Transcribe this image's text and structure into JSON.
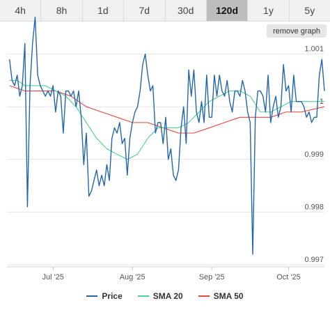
{
  "tabs": [
    {
      "label": "4h",
      "active": false
    },
    {
      "label": "8h",
      "active": false
    },
    {
      "label": "1d",
      "active": false
    },
    {
      "label": "7d",
      "active": false
    },
    {
      "label": "30d",
      "active": false
    },
    {
      "label": "120d",
      "active": true
    },
    {
      "label": "1y",
      "active": false
    },
    {
      "label": "5y",
      "active": false
    }
  ],
  "remove_graph_label": "remove graph",
  "chart_data": {
    "type": "line",
    "xlim": [
      "2025-06-13",
      "2025-10-15"
    ],
    "ylim": [
      0.99696,
      1.00118
    ],
    "y_ticks": [
      {
        "value": 1.001,
        "label": "1.001"
      },
      {
        "value": 1.0,
        "label": "1"
      },
      {
        "value": 0.999,
        "label": "0.999"
      },
      {
        "value": 0.998,
        "label": "0.998"
      },
      {
        "value": 0.997,
        "label": "0.997"
      }
    ],
    "x_ticks": [
      {
        "date": "2025-07-01",
        "label": "Jul '25"
      },
      {
        "date": "2025-08-01",
        "label": "Aug '25"
      },
      {
        "date": "2025-09-01",
        "label": "Sep '25"
      },
      {
        "date": "2025-10-01",
        "label": "Oct '25"
      }
    ],
    "grid": true,
    "legend_position": "bottom",
    "colors": {
      "price": "#2166ac",
      "sma20": "#4fd18b",
      "sma50": "#e8463a"
    },
    "series": [
      {
        "name": "Price",
        "color": "#2166ac",
        "points": [
          [
            "2025-06-14",
            1.0009
          ],
          [
            "2025-06-15",
            1.0005
          ],
          [
            "2025-06-16",
            1.0004
          ],
          [
            "2025-06-17",
            1.0006
          ],
          [
            "2025-06-18",
            1.0002
          ],
          [
            "2025-06-19",
            1.0004
          ],
          [
            "2025-06-20",
            1.0012
          ],
          [
            "2025-06-21",
            0.9981
          ],
          [
            "2025-06-22",
            1.0004
          ],
          [
            "2025-06-23",
            1.0012
          ],
          [
            "2025-06-24",
            1.0017
          ],
          [
            "2025-06-25",
            1.0006
          ],
          [
            "2025-06-26",
            1.0004
          ],
          [
            "2025-06-27",
            1.0003
          ],
          [
            "2025-06-28",
            1.0002
          ],
          [
            "2025-06-29",
            1.0003
          ],
          [
            "2025-06-30",
            1.0002
          ],
          [
            "2025-07-01",
            1.0004
          ],
          [
            "2025-07-02",
            0.9999
          ],
          [
            "2025-07-03",
            1.0003
          ],
          [
            "2025-07-04",
            1.0002
          ],
          [
            "2025-07-05",
            0.9995
          ],
          [
            "2025-07-06",
            1.0003
          ],
          [
            "2025-07-07",
            1.0003
          ],
          [
            "2025-07-08",
            1.0002
          ],
          [
            "2025-07-09",
            1.0003
          ],
          [
            "2025-07-10",
            1.0
          ],
          [
            "2025-07-11",
            1.0003
          ],
          [
            "2025-07-12",
            0.9998
          ],
          [
            "2025-07-13",
            0.9989
          ],
          [
            "2025-07-14",
            0.9995
          ],
          [
            "2025-07-15",
            0.9983
          ],
          [
            "2025-07-16",
            0.9984
          ],
          [
            "2025-07-17",
            0.9986
          ],
          [
            "2025-07-18",
            0.9988
          ],
          [
            "2025-07-19",
            0.9985
          ],
          [
            "2025-07-20",
            0.9987
          ],
          [
            "2025-07-21",
            0.9985
          ],
          [
            "2025-07-22",
            0.9989
          ],
          [
            "2025-07-23",
            0.9986
          ],
          [
            "2025-07-24",
            0.9994
          ],
          [
            "2025-07-25",
            0.9996
          ],
          [
            "2025-07-26",
            0.9995
          ],
          [
            "2025-07-27",
            0.9997
          ],
          [
            "2025-07-28",
            0.9993
          ],
          [
            "2025-07-29",
            0.9994
          ],
          [
            "2025-07-30",
            0.9987
          ],
          [
            "2025-07-31",
            0.9994
          ],
          [
            "2025-08-01",
            0.9997
          ],
          [
            "2025-08-02",
            0.9999
          ],
          [
            "2025-08-03",
            1.0
          ],
          [
            "2025-08-04",
            1.0003
          ],
          [
            "2025-08-05",
            1.0008
          ],
          [
            "2025-08-06",
            1.001
          ],
          [
            "2025-08-07",
            1.0006
          ],
          [
            "2025-08-08",
            1.0003
          ],
          [
            "2025-08-09",
            1.0004
          ],
          [
            "2025-08-10",
            0.9995
          ],
          [
            "2025-08-11",
            0.9997
          ],
          [
            "2025-08-12",
            0.9997
          ],
          [
            "2025-08-13",
            0.9993
          ],
          [
            "2025-08-14",
            0.9998
          ],
          [
            "2025-08-15",
            0.999
          ],
          [
            "2025-08-16",
            0.9992
          ],
          [
            "2025-08-17",
            0.9987
          ],
          [
            "2025-08-18",
            0.9986
          ],
          [
            "2025-08-19",
            0.9988
          ],
          [
            "2025-08-20",
            0.9996
          ],
          [
            "2025-08-21",
            1.0
          ],
          [
            "2025-08-22",
            0.9993
          ],
          [
            "2025-08-23",
            1.0007
          ],
          [
            "2025-08-24",
            1.0002
          ],
          [
            "2025-08-25",
            1.0007
          ],
          [
            "2025-08-26",
            0.9999
          ],
          [
            "2025-08-27",
            0.9997
          ],
          [
            "2025-08-28",
            1.0001
          ],
          [
            "2025-08-29",
            0.9997
          ],
          [
            "2025-08-30",
            1.0006
          ],
          [
            "2025-08-31",
            0.9998
          ],
          [
            "2025-09-01",
            0.9998
          ],
          [
            "2025-09-02",
            1.0006
          ],
          [
            "2025-09-03",
            1.0002
          ],
          [
            "2025-09-04",
            1.0006
          ],
          [
            "2025-09-05",
            1.0003
          ],
          [
            "2025-09-06",
            1.0002
          ],
          [
            "2025-09-07",
            1.0005
          ],
          [
            "2025-09-08",
            1.0001
          ],
          [
            "2025-09-09",
            0.9999
          ],
          [
            "2025-09-10",
            1.0003
          ],
          [
            "2025-09-11",
            1.0003
          ],
          [
            "2025-09-12",
            1.0002
          ],
          [
            "2025-09-13",
            1.0005
          ],
          [
            "2025-09-14",
            1.0003
          ],
          [
            "2025-09-15",
            0.9999
          ],
          [
            "2025-09-16",
            0.9997
          ],
          [
            "2025-09-17",
            0.9972
          ],
          [
            "2025-09-18",
            0.9998
          ],
          [
            "2025-09-19",
            1.0003
          ],
          [
            "2025-09-20",
            1.0003
          ],
          [
            "2025-09-21",
            1.0002
          ],
          [
            "2025-09-22",
            0.9999
          ],
          [
            "2025-09-23",
            1.0006
          ],
          [
            "2025-09-24",
            0.9997
          ],
          [
            "2025-09-25",
            1.0
          ],
          [
            "2025-09-26",
            1.0002
          ],
          [
            "2025-09-27",
            0.9998
          ],
          [
            "2025-09-28",
            1.0
          ],
          [
            "2025-09-29",
            1.0008
          ],
          [
            "2025-09-30",
            1.0003
          ],
          [
            "2025-10-01",
            1.0004
          ],
          [
            "2025-10-02",
            0.9999
          ],
          [
            "2025-10-03",
            1.0006
          ],
          [
            "2025-10-04",
            1.0001
          ],
          [
            "2025-10-05",
            1.0001
          ],
          [
            "2025-10-06",
            1.0001
          ],
          [
            "2025-10-07",
            1.0
          ],
          [
            "2025-10-08",
            0.9998
          ],
          [
            "2025-10-09",
            0.9999
          ],
          [
            "2025-10-10",
            0.9997
          ],
          [
            "2025-10-11",
            0.9998
          ],
          [
            "2025-10-12",
            0.9998
          ],
          [
            "2025-10-13",
            1.0006
          ],
          [
            "2025-10-14",
            1.0009
          ],
          [
            "2025-10-15",
            1.0003
          ]
        ]
      },
      {
        "name": "SMA 20",
        "color": "#4fd18b",
        "points": [
          [
            "2025-06-14",
            1.0005
          ],
          [
            "2025-06-17",
            1.0005
          ],
          [
            "2025-06-20",
            1.0004
          ],
          [
            "2025-06-24",
            1.0004
          ],
          [
            "2025-06-28",
            1.0004
          ],
          [
            "2025-07-02",
            1.0003
          ],
          [
            "2025-07-06",
            1.0002
          ],
          [
            "2025-07-10",
            1.0
          ],
          [
            "2025-07-14",
            0.9997
          ],
          [
            "2025-07-18",
            0.9994
          ],
          [
            "2025-07-22",
            0.9992
          ],
          [
            "2025-07-26",
            0.9991
          ],
          [
            "2025-07-30",
            0.999
          ],
          [
            "2025-08-03",
            0.9991
          ],
          [
            "2025-08-07",
            0.9994
          ],
          [
            "2025-08-11",
            0.9996
          ],
          [
            "2025-08-15",
            0.9996
          ],
          [
            "2025-08-19",
            0.9996
          ],
          [
            "2025-08-23",
            0.9997
          ],
          [
            "2025-08-27",
            0.9999
          ],
          [
            "2025-08-31",
            1.0001
          ],
          [
            "2025-09-04",
            1.0002
          ],
          [
            "2025-09-08",
            1.0003
          ],
          [
            "2025-09-12",
            1.0003
          ],
          [
            "2025-09-16",
            1.0002
          ],
          [
            "2025-09-20",
            0.9999
          ],
          [
            "2025-09-24",
            0.9999
          ],
          [
            "2025-09-28",
            1.0
          ],
          [
            "2025-10-02",
            1.0001
          ],
          [
            "2025-10-06",
            1.0001
          ],
          [
            "2025-10-10",
            1.0001
          ],
          [
            "2025-10-15",
            1.0001
          ]
        ]
      },
      {
        "name": "SMA 50",
        "color": "#e8463a",
        "points": [
          [
            "2025-06-14",
            1.0004
          ],
          [
            "2025-06-20",
            1.0003
          ],
          [
            "2025-06-26",
            1.0003
          ],
          [
            "2025-07-02",
            1.0003
          ],
          [
            "2025-07-08",
            1.0002
          ],
          [
            "2025-07-14",
            1.0
          ],
          [
            "2025-07-20",
            0.9999
          ],
          [
            "2025-07-26",
            0.9998
          ],
          [
            "2025-08-01",
            0.9997
          ],
          [
            "2025-08-07",
            0.9997
          ],
          [
            "2025-08-13",
            0.9996
          ],
          [
            "2025-08-19",
            0.9995
          ],
          [
            "2025-08-25",
            0.9995
          ],
          [
            "2025-08-31",
            0.9996
          ],
          [
            "2025-09-06",
            0.9997
          ],
          [
            "2025-09-12",
            0.9998
          ],
          [
            "2025-09-18",
            0.9998
          ],
          [
            "2025-09-24",
            0.9998
          ],
          [
            "2025-09-30",
            0.9999
          ],
          [
            "2025-10-06",
            0.9999
          ],
          [
            "2025-10-15",
            1.0
          ]
        ]
      }
    ]
  }
}
